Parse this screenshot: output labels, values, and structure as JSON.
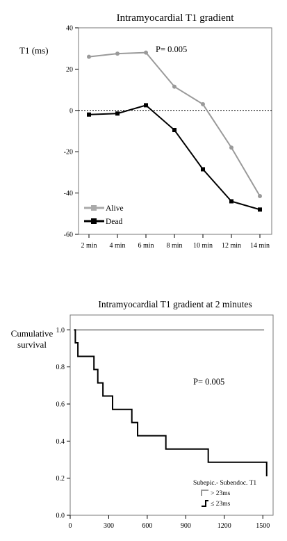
{
  "chart_data": [
    {
      "type": "line",
      "title": "Intramyocardial T1 gradient",
      "ylabel": "T1 (ms)",
      "xlabel": "",
      "categories": [
        "2 min",
        "4 min",
        "6 min",
        "8 min",
        "10 min",
        "12 min",
        "14 min"
      ],
      "ylim": [
        -60,
        40
      ],
      "yticks": [
        "40",
        "20",
        "0",
        "-20",
        "-40",
        "-60"
      ],
      "reference_line": 0,
      "annotation": "P= 0.005",
      "legend_position": "bottom-left",
      "series": [
        {
          "name": "Alive",
          "color": "#9a9a9a",
          "values": [
            26,
            27.5,
            28,
            11.5,
            3,
            -18,
            -41.5
          ]
        },
        {
          "name": "Dead",
          "color": "#000000",
          "values": [
            -2,
            -1.5,
            2.5,
            -9.5,
            -28.5,
            -44,
            -48
          ]
        }
      ]
    },
    {
      "type": "line",
      "subtype": "kaplan-meier-step",
      "title": "Intramyocardial T1 gradient at 2 minutes",
      "ylabel": "Cumulative survival",
      "xlabel": "",
      "xlim": [
        0,
        1580
      ],
      "ylim": [
        0,
        1.08
      ],
      "xticks": [
        "0",
        "300",
        "600",
        "900",
        "1200",
        "1500"
      ],
      "yticks": [
        "0.0",
        "0.2",
        "0.4",
        "0.6",
        "0.8",
        "1.0"
      ],
      "annotation": "P= 0.005",
      "legend_title": "Subepic.- Subendoc. T1",
      "legend_position": "bottom-right",
      "series": [
        {
          "name": "> 23ms",
          "color": "#9a9a9a",
          "steps": [
            [
              30,
              1.0
            ],
            [
              1510,
              1.0
            ]
          ]
        },
        {
          "name": "≤ 23ms",
          "color": "#000000",
          "steps": [
            [
              30,
              1.0
            ],
            [
              40,
              0.93
            ],
            [
              60,
              0.857
            ],
            [
              185,
              0.786
            ],
            [
              215,
              0.714
            ],
            [
              255,
              0.643
            ],
            [
              330,
              0.571
            ],
            [
              480,
              0.5
            ],
            [
              525,
              0.429
            ],
            [
              745,
              0.357
            ],
            [
              1075,
              0.286
            ],
            [
              1530,
              0.286
            ],
            [
              1530,
              0.21
            ]
          ]
        }
      ]
    }
  ]
}
